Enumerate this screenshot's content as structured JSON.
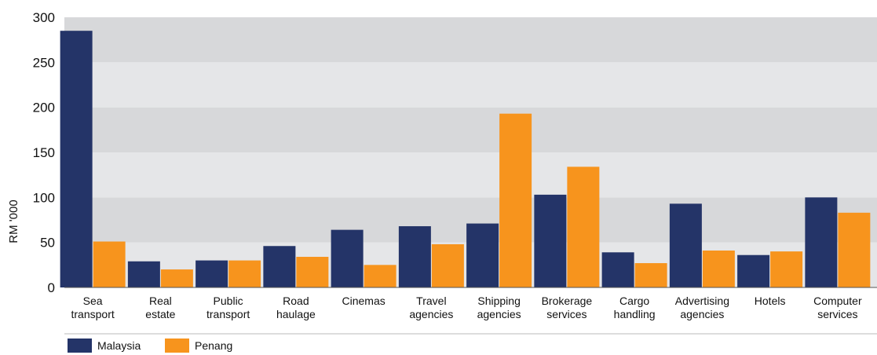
{
  "chart_data": {
    "type": "bar",
    "title": "",
    "xlabel": "",
    "ylabel": "RM '000",
    "ylim": [
      0,
      300
    ],
    "yticks": [
      0,
      50,
      100,
      150,
      200,
      250,
      300
    ],
    "grid": "alternating horizontal bands",
    "legend_position": "bottom-left",
    "categories": [
      [
        "Sea",
        "transport"
      ],
      [
        "Real",
        "estate"
      ],
      [
        "Public",
        "transport"
      ],
      [
        "Road",
        "haulage"
      ],
      [
        "Cinemas"
      ],
      [
        "Travel",
        "agencies"
      ],
      [
        "Shipping",
        "agencies"
      ],
      [
        "Brokerage",
        "services"
      ],
      [
        "Cargo",
        "handling"
      ],
      [
        "Advertising",
        "agencies"
      ],
      [
        "Hotels"
      ],
      [
        "Computer",
        "services"
      ]
    ],
    "series": [
      {
        "name": "Malaysia",
        "color": "#243468",
        "values": [
          285,
          29,
          30,
          46,
          64,
          68,
          71,
          103,
          39,
          93,
          36,
          100
        ]
      },
      {
        "name": "Penang",
        "color": "#F7941D",
        "values": [
          51,
          20,
          30,
          34,
          25,
          48,
          193,
          134,
          27,
          41,
          40,
          83
        ]
      }
    ],
    "band_colors": [
      "#e5e6e8",
      "#d7d8da"
    ]
  }
}
